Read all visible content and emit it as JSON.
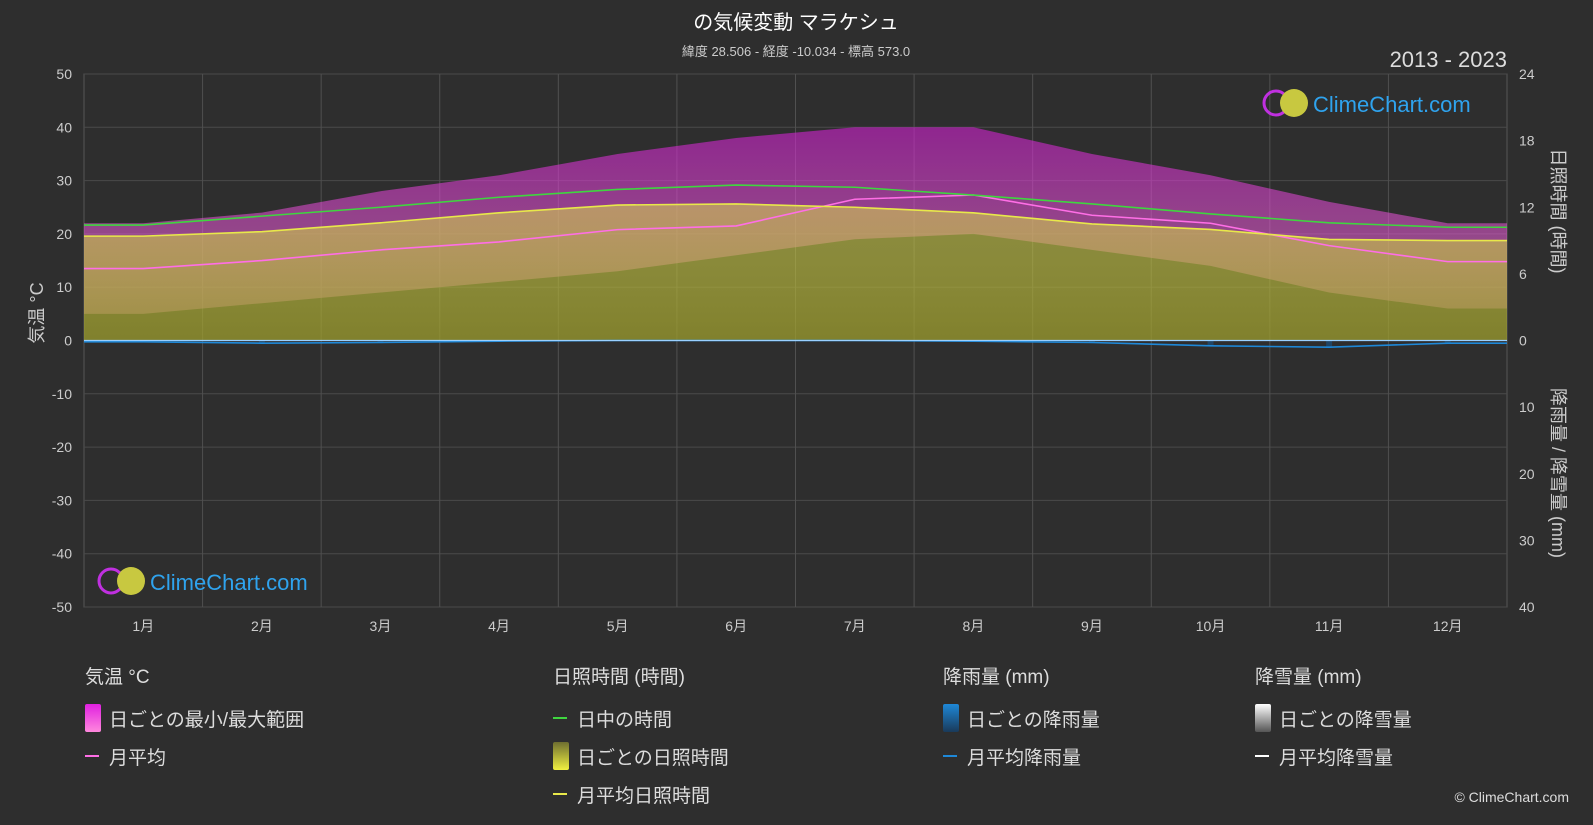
{
  "title": "の気候変動 マラケシュ",
  "subtitle": "緯度 28.506 - 経度 -10.034 - 標高 573.0",
  "period": "2013 - 2023",
  "brand": "ClimeChart.com",
  "copyright": "© ClimeChart.com",
  "legend": {
    "temperature": {
      "title": "気温 °C",
      "range": "日ごとの最小/最大範囲",
      "avg": "月平均"
    },
    "sunshine": {
      "title": "日照時間 (時間)",
      "daylight": "日中の時間",
      "daily": "日ごとの日照時間",
      "avg": "月平均日照時間"
    },
    "rain": {
      "title": "降雨量 (mm)",
      "daily": "日ごとの降雨量",
      "avg": "月平均降雨量"
    },
    "snow": {
      "title": "降雪量 (mm)",
      "daily": "日ごとの降雪量",
      "avg": "月平均降雪量"
    }
  },
  "colors": {
    "background": "#2e2e2e",
    "daylight": "#3fd63f",
    "sunshine": "#e8e84a",
    "temp_avg": "#ff6ee6",
    "temp_range": "#e020e0",
    "rain": "#1e88d8",
    "snow": "#ffffff"
  },
  "chart_data": {
    "type": "line",
    "categories": [
      "1月",
      "2月",
      "3月",
      "4月",
      "5月",
      "6月",
      "7月",
      "8月",
      "9月",
      "10月",
      "11月",
      "12月"
    ],
    "left_axis": {
      "label": "気温 °C",
      "ticks": [
        "50",
        "40",
        "30",
        "20",
        "10",
        "0",
        "-10",
        "-20",
        "-30",
        "-40",
        "-50"
      ],
      "range": [
        -50,
        50
      ]
    },
    "right_axis_top": {
      "label": "日照時間 (時間)",
      "ticks": [
        "24",
        "18",
        "12",
        "6",
        "0"
      ],
      "range": [
        0,
        24
      ]
    },
    "right_axis_bottom": {
      "label": "降雨量 / 降雪量 (mm)",
      "ticks": [
        "10",
        "20",
        "30",
        "40"
      ],
      "range": [
        0,
        40
      ]
    },
    "series": [
      {
        "name": "日中の時間",
        "axis": "sunshine_hours",
        "values": [
          10.4,
          11.2,
          12.0,
          12.9,
          13.6,
          14.0,
          13.8,
          13.1,
          12.3,
          11.4,
          10.6,
          10.2
        ]
      },
      {
        "name": "月平均日照時間",
        "axis": "sunshine_hours",
        "values": [
          9.4,
          9.8,
          10.6,
          11.5,
          12.2,
          12.3,
          12.0,
          11.5,
          10.5,
          10.0,
          9.1,
          9.0
        ]
      },
      {
        "name": "月平均",
        "axis": "temperature_c",
        "values": [
          13.5,
          15.0,
          17.0,
          18.5,
          20.8,
          21.5,
          26.5,
          27.3,
          23.5,
          22.0,
          17.8,
          14.8
        ]
      },
      {
        "name": "月平均降雨量",
        "axis": "precipitation_mm",
        "values": [
          0.2,
          0.4,
          0.3,
          0.1,
          0.0,
          0.0,
          0.0,
          0.1,
          0.3,
          0.8,
          1.0,
          0.4
        ]
      },
      {
        "name": "月平均降雪量",
        "axis": "precipitation_mm",
        "values": [
          0,
          0,
          0,
          0,
          0,
          0,
          0,
          0,
          0,
          0,
          0,
          0
        ]
      }
    ],
    "temp_range": {
      "min": [
        5,
        7,
        9,
        11,
        13,
        16,
        19,
        20,
        17,
        14,
        9,
        6
      ],
      "max": [
        22,
        24,
        28,
        31,
        35,
        38,
        40,
        40,
        35,
        31,
        26,
        22
      ]
    },
    "grid": true
  }
}
